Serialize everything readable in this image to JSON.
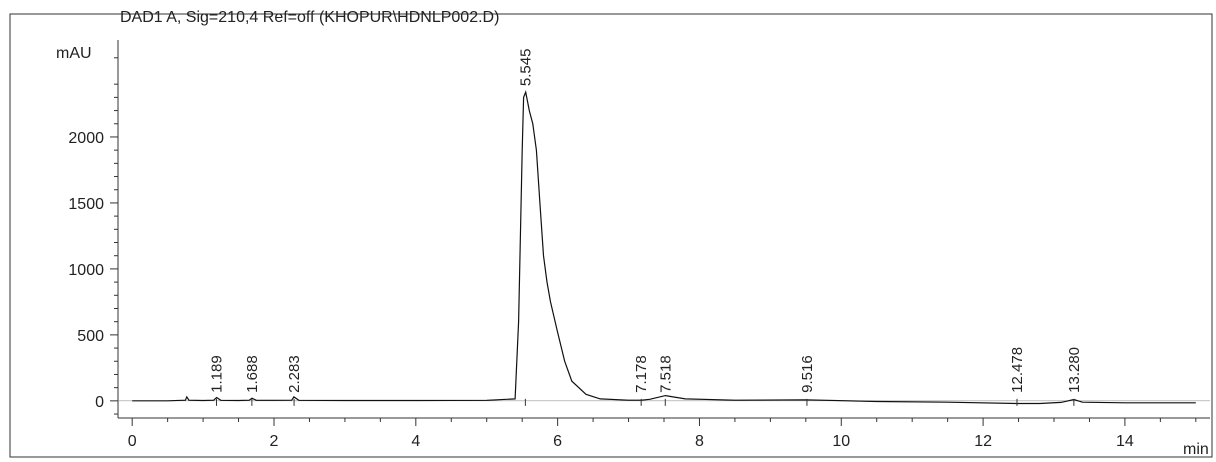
{
  "chart_data": {
    "type": "line",
    "title": "DAD1 A, Sig=210,4 Ref=off (KHOPUR\\HDNLP002.D)",
    "ylabel": "mAU",
    "xlabel": "min",
    "xlim": [
      -0.2,
      15.2
    ],
    "ylim": [
      -130,
      2750
    ],
    "x_ticks": [
      0,
      2,
      4,
      6,
      8,
      10,
      12,
      14
    ],
    "x_tick_labels": [
      "0",
      "2",
      "4",
      "6",
      "8",
      "10",
      "12",
      "14"
    ],
    "x_minor_step": 0.5,
    "y_ticks": [
      0,
      500,
      1000,
      1500,
      2000
    ],
    "y_tick_labels": [
      "0",
      "500",
      "1000",
      "1500",
      "2000"
    ],
    "y_minor_step": 100,
    "series": [
      {
        "x": [
          0,
          0.5,
          0.75,
          0.77,
          0.8,
          1.0,
          1.15,
          1.19,
          1.25,
          1.5,
          1.65,
          1.69,
          1.75,
          2.0,
          2.25,
          2.28,
          2.35,
          3.0,
          4.0,
          5.0,
          5.4,
          5.45,
          5.5,
          5.52,
          5.55,
          5.6,
          5.65,
          5.7,
          5.75,
          5.8,
          5.85,
          5.9,
          6.0,
          6.1,
          6.2,
          6.4,
          6.6,
          7.0,
          7.18,
          7.3,
          7.52,
          7.8,
          8.5,
          9.5,
          10.5,
          11.5,
          12.48,
          12.8,
          13.1,
          13.28,
          13.4,
          14.0,
          15.0
        ],
        "y": [
          0,
          0,
          5,
          30,
          5,
          3,
          5,
          25,
          4,
          3,
          5,
          20,
          4,
          4,
          5,
          30,
          4,
          3,
          3,
          4,
          15,
          600,
          1900,
          2300,
          2340,
          2200,
          2100,
          1900,
          1500,
          1100,
          900,
          750,
          520,
          300,
          150,
          50,
          15,
          5,
          5,
          12,
          40,
          15,
          5,
          8,
          -5,
          -10,
          -20,
          -20,
          -12,
          10,
          -10,
          -15,
          -15
        ]
      }
    ],
    "annotations": [
      {
        "x": 1.189,
        "label": "1.189"
      },
      {
        "x": 1.688,
        "label": "1.688"
      },
      {
        "x": 2.283,
        "label": "2.283"
      },
      {
        "x": 5.545,
        "label": "5.545"
      },
      {
        "x": 7.178,
        "label": "7.178"
      },
      {
        "x": 7.518,
        "label": "7.518"
      },
      {
        "x": 9.516,
        "label": "9.516"
      },
      {
        "x": 12.478,
        "label": "12.478"
      },
      {
        "x": 13.28,
        "label": "13.280"
      }
    ],
    "grid": false,
    "legend": "none",
    "colors": {
      "line": "#111111",
      "axis": "#333333",
      "frame": "#333333"
    }
  }
}
